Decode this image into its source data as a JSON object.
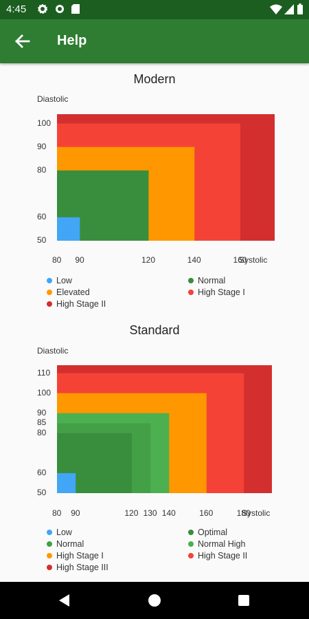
{
  "status_bar": {
    "time": "4:45"
  },
  "app_bar": {
    "title": "Help"
  },
  "colors": {
    "low": "#42a5f5",
    "optimal": "#388e3c",
    "normal_modern": "#388e3c",
    "normal_standard": "#43a047",
    "normal_high": "#4caf50",
    "elevated": "#ff9800",
    "stage1": "#f44336",
    "stage2": "#d32f2f"
  },
  "chart_data": [
    {
      "type": "area",
      "title": "Modern",
      "ylabel": "Diastolic",
      "xlabel": "Systolic",
      "x_ticks": [
        "80",
        "90",
        "120",
        "140",
        "160"
      ],
      "y_ticks": [
        "100",
        "90",
        "80",
        "60",
        "50"
      ],
      "xlim": [
        80,
        175
      ],
      "ylim": [
        50,
        104
      ],
      "regions": [
        {
          "name": "High Stage II",
          "x_max": 175,
          "y_max": 104,
          "color": "#d32f2f"
        },
        {
          "name": "High Stage I",
          "x_max": 160,
          "y_max": 100,
          "color": "#f44336"
        },
        {
          "name": "Elevated",
          "x_max": 140,
          "y_max": 90,
          "color": "#ff9800"
        },
        {
          "name": "Normal",
          "x_max": 120,
          "y_max": 80,
          "color": "#388e3c"
        },
        {
          "name": "Low",
          "x_max": 90,
          "y_max": 60,
          "color": "#42a5f5"
        }
      ],
      "legend": [
        {
          "label": "Low",
          "color": "#42a5f5"
        },
        {
          "label": "Normal",
          "color": "#388e3c"
        },
        {
          "label": "Elevated",
          "color": "#ff9800"
        },
        {
          "label": "High Stage I",
          "color": "#f44336"
        },
        {
          "label": "High Stage II",
          "color": "#d32f2f"
        }
      ]
    },
    {
      "type": "area",
      "title": "Standard",
      "ylabel": "Diastolic",
      "xlabel": "Systolic",
      "x_ticks": [
        "80",
        "90",
        "120",
        "130",
        "140",
        "160",
        "180"
      ],
      "y_ticks": [
        "110",
        "100",
        "90",
        "85",
        "80",
        "60",
        "50"
      ],
      "xlim": [
        80,
        195
      ],
      "ylim": [
        50,
        114
      ],
      "regions": [
        {
          "name": "High Stage III",
          "x_max": 195,
          "y_max": 114,
          "color": "#d32f2f"
        },
        {
          "name": "High Stage II",
          "x_max": 180,
          "y_max": 110,
          "color": "#f44336"
        },
        {
          "name": "High Stage I",
          "x_max": 160,
          "y_max": 100,
          "color": "#ff9800"
        },
        {
          "name": "Normal High",
          "x_max": 140,
          "y_max": 90,
          "color": "#4caf50"
        },
        {
          "name": "Normal",
          "x_max": 130,
          "y_max": 85,
          "color": "#43a047"
        },
        {
          "name": "Optimal",
          "x_max": 120,
          "y_max": 80,
          "color": "#388e3c"
        },
        {
          "name": "Low",
          "x_max": 90,
          "y_max": 60,
          "color": "#42a5f5"
        }
      ],
      "legend": [
        {
          "label": "Low",
          "color": "#42a5f5"
        },
        {
          "label": "Optimal",
          "color": "#388e3c"
        },
        {
          "label": "Normal",
          "color": "#43a047"
        },
        {
          "label": "Normal High",
          "color": "#4caf50"
        },
        {
          "label": "High Stage I",
          "color": "#ff9800"
        },
        {
          "label": "High Stage II",
          "color": "#f44336"
        },
        {
          "label": "High Stage III",
          "color": "#d32f2f"
        }
      ]
    }
  ]
}
